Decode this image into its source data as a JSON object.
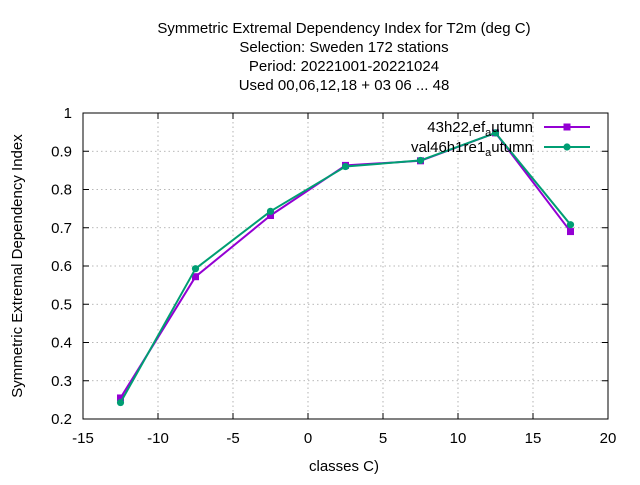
{
  "chart_data": {
    "type": "line",
    "title_lines": [
      "Symmetric Extremal Dependency Index  for T2m (deg C)",
      "Selection: Sweden    172 stations",
      "Period: 20221001-20221024",
      "Used  00,06,12,18  + 03 06 ... 48"
    ],
    "xlabel": "classes C)",
    "ylabel": "Symmetric Extremal Dependency Index",
    "xlim": [
      -15,
      20
    ],
    "ylim": [
      0.2,
      1.0
    ],
    "xticks": [
      "-15",
      "-10",
      "-5",
      "0",
      "5",
      "10",
      "15",
      "20"
    ],
    "yticks": [
      "0.2",
      "0.3",
      "0.4",
      "0.5",
      "0.6",
      "0.7",
      "0.8",
      "0.9",
      "1"
    ],
    "grid": true,
    "legend_placement": "top-right",
    "x": [
      -12.5,
      -7.5,
      -2.5,
      2.5,
      7.5,
      12.5,
      17.5
    ],
    "series": [
      {
        "name": "43h22_ref_autumn",
        "legend_main": "43h22",
        "legend_sub1": "r",
        "legend_mid": "ef",
        "legend_sub2": "a",
        "legend_tail": "utumn",
        "color": "#9400d3",
        "marker": "filled-square",
        "values": [
          0.255,
          0.572,
          0.732,
          0.863,
          0.875,
          0.948,
          0.69
        ]
      },
      {
        "name": "val46h1re1_autumn",
        "legend_main": "val46h1re1",
        "legend_sub1": "",
        "legend_mid": "",
        "legend_sub2": "a",
        "legend_tail": "utumn",
        "color": "#009e73",
        "marker": "filled-circle",
        "values": [
          0.243,
          0.593,
          0.743,
          0.86,
          0.876,
          0.948,
          0.708
        ]
      }
    ]
  }
}
